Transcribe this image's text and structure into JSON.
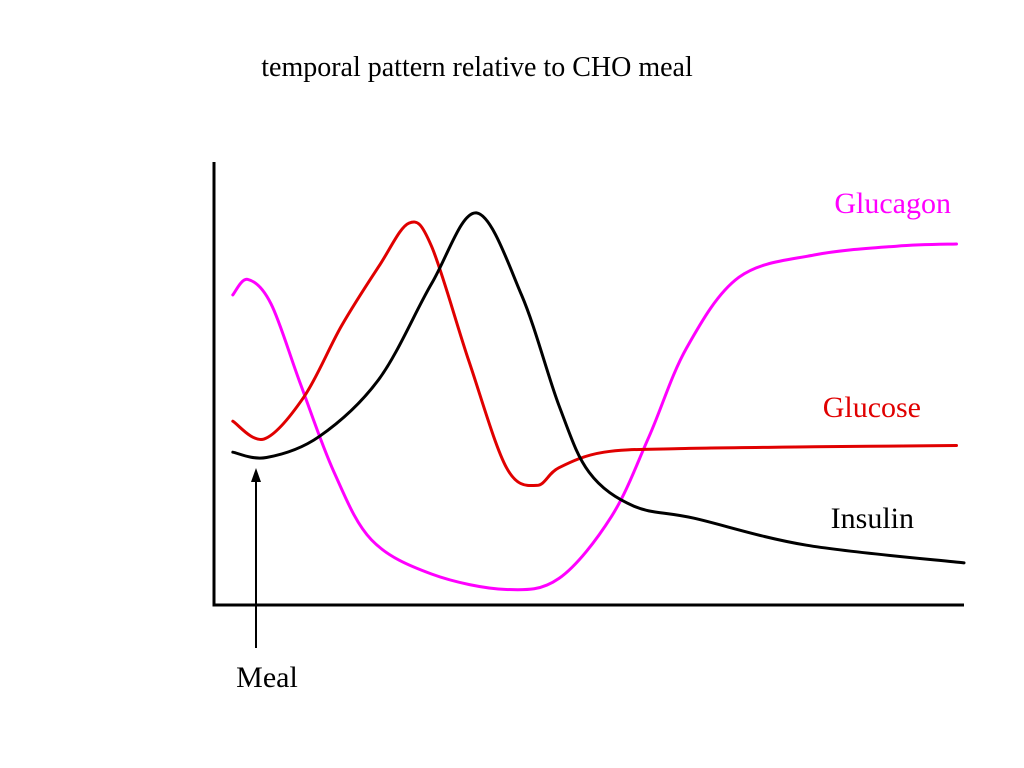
{
  "chart_data": {
    "type": "line",
    "title": "temporal pattern relative to CHO meal",
    "xlabel": "",
    "ylabel": "",
    "xlim": [
      0,
      100
    ],
    "ylim": [
      0,
      100
    ],
    "grid": false,
    "legend": "inline labels at right end of each curve",
    "series": [
      {
        "name": "Glucagon",
        "color": "#ff00ff",
        "points": [
          [
            2.5,
            70
          ],
          [
            4.5,
            73.5
          ],
          [
            7.6,
            68
          ],
          [
            11.5,
            50
          ],
          [
            16,
            30
          ],
          [
            21,
            14.7
          ],
          [
            29,
            7
          ],
          [
            39,
            3.5
          ],
          [
            46,
            6
          ],
          [
            53,
            20
          ],
          [
            58,
            38
          ],
          [
            63,
            58
          ],
          [
            70,
            74
          ],
          [
            80,
            79
          ],
          [
            91,
            81
          ],
          [
            99,
            81.5
          ]
        ]
      },
      {
        "name": "Glucose",
        "color": "#e00000",
        "points": [
          [
            2.5,
            41.5
          ],
          [
            6.7,
            37.5
          ],
          [
            12,
            47
          ],
          [
            17,
            63
          ],
          [
            22,
            76.5
          ],
          [
            26,
            86.2
          ],
          [
            29,
            81
          ],
          [
            34,
            55
          ],
          [
            39,
            31
          ],
          [
            43,
            27
          ],
          [
            46,
            31
          ],
          [
            52,
            34.5
          ],
          [
            62,
            35.3
          ],
          [
            80,
            35.7
          ],
          [
            99,
            36
          ]
        ]
      },
      {
        "name": "Insulin",
        "color": "#000000",
        "points": [
          [
            2.5,
            34.5
          ],
          [
            7,
            33.3
          ],
          [
            14,
            38
          ],
          [
            22,
            51
          ],
          [
            29,
            72.5
          ],
          [
            35,
            88.5
          ],
          [
            41,
            70
          ],
          [
            46,
            45
          ],
          [
            50,
            30
          ],
          [
            56,
            22.3
          ],
          [
            64,
            19.6
          ],
          [
            79,
            13.5
          ],
          [
            100,
            9.5
          ]
        ]
      }
    ],
    "annotations": [
      {
        "text": "Meal",
        "type": "arrow",
        "x": 5.6
      }
    ]
  }
}
